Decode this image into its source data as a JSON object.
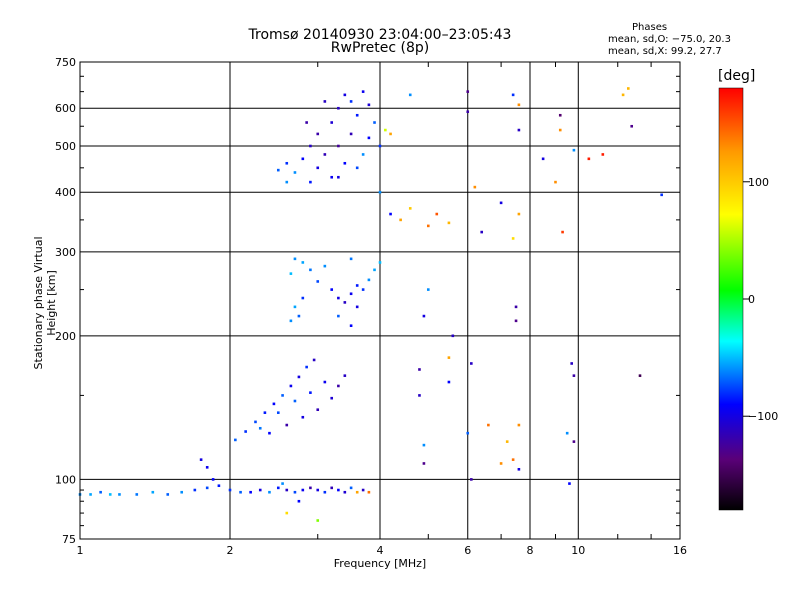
{
  "title_line1": "Tromsø 20140930 23:04:00–23:05:43",
  "title_line2": "RwPretec (8p)",
  "stats": {
    "heading": "Phases",
    "o_mode": "mean, sd,O: −75.0, 20.3",
    "x_mode": "mean, sd,X:  99.2, 27.7"
  },
  "colorbar": {
    "unit": "[deg]",
    "ticks": [
      "100",
      "0",
      "−100"
    ],
    "tick_values": [
      100,
      0,
      -100
    ],
    "range": [
      -180,
      180
    ],
    "colormap": "rainbow (black–purple–blue–cyan–green–yellow–orange–red)"
  },
  "chart_data": {
    "type": "scatter",
    "xlabel": "Frequency [MHz]",
    "ylabel": "Stationary phase Virtual Height [km]",
    "xscale": "log",
    "yscale": "log",
    "xlim": [
      1,
      16
    ],
    "ylim": [
      75,
      750
    ],
    "xticks": [
      1,
      2,
      4,
      6,
      8,
      10,
      16
    ],
    "xtick_labels": [
      "1",
      "2",
      "4",
      "6",
      "8",
      "10",
      "16"
    ],
    "yticks": [
      75,
      100,
      200,
      300,
      400,
      500,
      600,
      750
    ],
    "ytick_labels": [
      "75",
      "100",
      "200",
      "300",
      "400",
      "500",
      "600",
      "750"
    ],
    "grid": true,
    "points": [
      {
        "x": 1.0,
        "y": 93,
        "p": -60
      },
      {
        "x": 1.05,
        "y": 93,
        "p": -55
      },
      {
        "x": 1.1,
        "y": 94,
        "p": -70
      },
      {
        "x": 1.15,
        "y": 93,
        "p": -50
      },
      {
        "x": 1.2,
        "y": 93,
        "p": -60
      },
      {
        "x": 1.3,
        "y": 93,
        "p": -65
      },
      {
        "x": 1.4,
        "y": 94,
        "p": -55
      },
      {
        "x": 1.5,
        "y": 93,
        "p": -70
      },
      {
        "x": 1.6,
        "y": 94,
        "p": -60
      },
      {
        "x": 1.7,
        "y": 95,
        "p": -80
      },
      {
        "x": 1.8,
        "y": 96,
        "p": -75
      },
      {
        "x": 1.85,
        "y": 100,
        "p": -90
      },
      {
        "x": 1.75,
        "y": 110,
        "p": -100
      },
      {
        "x": 1.8,
        "y": 106,
        "p": -95
      },
      {
        "x": 1.9,
        "y": 97,
        "p": -85
      },
      {
        "x": 2.0,
        "y": 95,
        "p": -80
      },
      {
        "x": 2.1,
        "y": 94,
        "p": -70
      },
      {
        "x": 2.2,
        "y": 94,
        "p": -90
      },
      {
        "x": 2.3,
        "y": 95,
        "p": -100
      },
      {
        "x": 2.4,
        "y": 94,
        "p": -60
      },
      {
        "x": 2.5,
        "y": 96,
        "p": -85
      },
      {
        "x": 2.6,
        "y": 95,
        "p": -110
      },
      {
        "x": 2.7,
        "y": 94,
        "p": -75
      },
      {
        "x": 2.8,
        "y": 95,
        "p": -95
      },
      {
        "x": 2.9,
        "y": 96,
        "p": -120
      },
      {
        "x": 3.0,
        "y": 95,
        "p": -100
      },
      {
        "x": 3.1,
        "y": 94,
        "p": -80
      },
      {
        "x": 3.2,
        "y": 96,
        "p": -115
      },
      {
        "x": 3.3,
        "y": 95,
        "p": -90
      },
      {
        "x": 3.4,
        "y": 94,
        "p": -105
      },
      {
        "x": 3.5,
        "y": 96,
        "p": -70
      },
      {
        "x": 3.6,
        "y": 94,
        "p": 120
      },
      {
        "x": 3.7,
        "y": 95,
        "p": -110
      },
      {
        "x": 3.8,
        "y": 94,
        "p": 140
      },
      {
        "x": 2.55,
        "y": 98,
        "p": -60
      },
      {
        "x": 2.75,
        "y": 90,
        "p": -90
      },
      {
        "x": 2.6,
        "y": 85,
        "p": 90
      },
      {
        "x": 3.0,
        "y": 82,
        "p": 40
      },
      {
        "x": 2.05,
        "y": 121,
        "p": -70
      },
      {
        "x": 2.15,
        "y": 126,
        "p": -80
      },
      {
        "x": 2.25,
        "y": 132,
        "p": -75
      },
      {
        "x": 2.35,
        "y": 138,
        "p": -85
      },
      {
        "x": 2.45,
        "y": 144,
        "p": -90
      },
      {
        "x": 2.55,
        "y": 150,
        "p": -70
      },
      {
        "x": 2.65,
        "y": 157,
        "p": -95
      },
      {
        "x": 2.75,
        "y": 164,
        "p": -100
      },
      {
        "x": 2.85,
        "y": 172,
        "p": -80
      },
      {
        "x": 2.95,
        "y": 178,
        "p": -110
      },
      {
        "x": 2.4,
        "y": 125,
        "p": -90
      },
      {
        "x": 2.6,
        "y": 130,
        "p": -120
      },
      {
        "x": 2.8,
        "y": 135,
        "p": -100
      },
      {
        "x": 3.0,
        "y": 140,
        "p": -115
      },
      {
        "x": 3.2,
        "y": 148,
        "p": -105
      },
      {
        "x": 3.3,
        "y": 157,
        "p": -120
      },
      {
        "x": 3.4,
        "y": 165,
        "p": -110
      },
      {
        "x": 3.1,
        "y": 160,
        "p": -95
      },
      {
        "x": 2.9,
        "y": 152,
        "p": -85
      },
      {
        "x": 2.7,
        "y": 146,
        "p": -70
      },
      {
        "x": 2.5,
        "y": 138,
        "p": -75
      },
      {
        "x": 2.3,
        "y": 128,
        "p": -65
      },
      {
        "x": 2.65,
        "y": 215,
        "p": -60
      },
      {
        "x": 2.7,
        "y": 230,
        "p": -55
      },
      {
        "x": 2.75,
        "y": 220,
        "p": -70
      },
      {
        "x": 2.8,
        "y": 240,
        "p": -80
      },
      {
        "x": 2.65,
        "y": 270,
        "p": -50
      },
      {
        "x": 2.7,
        "y": 290,
        "p": -60
      },
      {
        "x": 2.8,
        "y": 285,
        "p": -55
      },
      {
        "x": 2.9,
        "y": 275,
        "p": -65
      },
      {
        "x": 3.0,
        "y": 260,
        "p": -75
      },
      {
        "x": 3.2,
        "y": 250,
        "p": -90
      },
      {
        "x": 3.3,
        "y": 240,
        "p": -100
      },
      {
        "x": 3.4,
        "y": 235,
        "p": -110
      },
      {
        "x": 3.5,
        "y": 245,
        "p": -95
      },
      {
        "x": 3.6,
        "y": 255,
        "p": -85
      },
      {
        "x": 3.7,
        "y": 250,
        "p": -80
      },
      {
        "x": 3.8,
        "y": 262,
        "p": -60
      },
      {
        "x": 3.9,
        "y": 275,
        "p": -55
      },
      {
        "x": 4.0,
        "y": 285,
        "p": -50
      },
      {
        "x": 3.3,
        "y": 220,
        "p": -70
      },
      {
        "x": 3.5,
        "y": 210,
        "p": -90
      },
      {
        "x": 3.6,
        "y": 230,
        "p": -100
      },
      {
        "x": 3.1,
        "y": 280,
        "p": -60
      },
      {
        "x": 3.5,
        "y": 290,
        "p": -65
      },
      {
        "x": 2.5,
        "y": 445,
        "p": -70
      },
      {
        "x": 2.6,
        "y": 460,
        "p": -80
      },
      {
        "x": 2.7,
        "y": 440,
        "p": -60
      },
      {
        "x": 2.8,
        "y": 470,
        "p": -90
      },
      {
        "x": 2.9,
        "y": 500,
        "p": -110
      },
      {
        "x": 3.0,
        "y": 530,
        "p": -120
      },
      {
        "x": 3.0,
        "y": 450,
        "p": -100
      },
      {
        "x": 3.1,
        "y": 480,
        "p": -115
      },
      {
        "x": 3.2,
        "y": 560,
        "p": -105
      },
      {
        "x": 3.2,
        "y": 430,
        "p": -95
      },
      {
        "x": 3.3,
        "y": 600,
        "p": -110
      },
      {
        "x": 3.3,
        "y": 500,
        "p": -125
      },
      {
        "x": 3.4,
        "y": 640,
        "p": -100
      },
      {
        "x": 3.4,
        "y": 460,
        "p": -90
      },
      {
        "x": 3.5,
        "y": 620,
        "p": -80
      },
      {
        "x": 3.5,
        "y": 530,
        "p": -115
      },
      {
        "x": 3.6,
        "y": 580,
        "p": -85
      },
      {
        "x": 3.6,
        "y": 450,
        "p": -75
      },
      {
        "x": 3.7,
        "y": 650,
        "p": -95
      },
      {
        "x": 3.7,
        "y": 480,
        "p": -60
      },
      {
        "x": 3.8,
        "y": 610,
        "p": -105
      },
      {
        "x": 3.8,
        "y": 520,
        "p": -90
      },
      {
        "x": 3.9,
        "y": 560,
        "p": -70
      },
      {
        "x": 4.0,
        "y": 500,
        "p": -80
      },
      {
        "x": 4.1,
        "y": 540,
        "p": 60
      },
      {
        "x": 4.2,
        "y": 530,
        "p": 120
      },
      {
        "x": 2.6,
        "y": 420,
        "p": -60
      },
      {
        "x": 2.9,
        "y": 420,
        "p": -85
      },
      {
        "x": 3.3,
        "y": 430,
        "p": -100
      },
      {
        "x": 2.85,
        "y": 560,
        "p": -120
      },
      {
        "x": 3.1,
        "y": 620,
        "p": -110
      },
      {
        "x": 4.0,
        "y": 400,
        "p": -60
      },
      {
        "x": 4.2,
        "y": 360,
        "p": -90
      },
      {
        "x": 4.4,
        "y": 350,
        "p": 120
      },
      {
        "x": 4.6,
        "y": 370,
        "p": 100
      },
      {
        "x": 5.0,
        "y": 340,
        "p": 140
      },
      {
        "x": 5.2,
        "y": 360,
        "p": 150
      },
      {
        "x": 5.5,
        "y": 345,
        "p": 110
      },
      {
        "x": 6.2,
        "y": 410,
        "p": 130
      },
      {
        "x": 6.4,
        "y": 330,
        "p": -110
      },
      {
        "x": 7.0,
        "y": 380,
        "p": -100
      },
      {
        "x": 7.4,
        "y": 320,
        "p": 90
      },
      {
        "x": 7.6,
        "y": 360,
        "p": 120
      },
      {
        "x": 5.0,
        "y": 250,
        "p": -60
      },
      {
        "x": 4.9,
        "y": 220,
        "p": -100
      },
      {
        "x": 5.6,
        "y": 200,
        "p": -110
      },
      {
        "x": 7.5,
        "y": 230,
        "p": -120
      },
      {
        "x": 7.5,
        "y": 215,
        "p": -130
      },
      {
        "x": 4.8,
        "y": 170,
        "p": -120
      },
      {
        "x": 4.8,
        "y": 150,
        "p": -110
      },
      {
        "x": 5.5,
        "y": 180,
        "p": 120
      },
      {
        "x": 5.5,
        "y": 160,
        "p": -90
      },
      {
        "x": 6.1,
        "y": 175,
        "p": -110
      },
      {
        "x": 6.6,
        "y": 130,
        "p": 140
      },
      {
        "x": 6.0,
        "y": 125,
        "p": -70
      },
      {
        "x": 7.2,
        "y": 120,
        "p": 110
      },
      {
        "x": 7.6,
        "y": 130,
        "p": 130
      },
      {
        "x": 7.4,
        "y": 110,
        "p": 140
      },
      {
        "x": 7.6,
        "y": 105,
        "p": -100
      },
      {
        "x": 4.9,
        "y": 118,
        "p": -60
      },
      {
        "x": 4.9,
        "y": 108,
        "p": -130
      },
      {
        "x": 6.1,
        "y": 100,
        "p": -120
      },
      {
        "x": 7.0,
        "y": 108,
        "p": 130
      },
      {
        "x": 9.5,
        "y": 125,
        "p": -60
      },
      {
        "x": 9.8,
        "y": 120,
        "p": -130
      },
      {
        "x": 9.8,
        "y": 165,
        "p": -120
      },
      {
        "x": 9.7,
        "y": 175,
        "p": -110
      },
      {
        "x": 13.3,
        "y": 165,
        "p": -150
      },
      {
        "x": 9.6,
        "y": 98,
        "p": -90
      },
      {
        "x": 4.6,
        "y": 640,
        "p": -60
      },
      {
        "x": 6.0,
        "y": 650,
        "p": -130
      },
      {
        "x": 6.0,
        "y": 590,
        "p": -120
      },
      {
        "x": 7.4,
        "y": 640,
        "p": -80
      },
      {
        "x": 7.6,
        "y": 610,
        "p": 130
      },
      {
        "x": 7.6,
        "y": 540,
        "p": -110
      },
      {
        "x": 8.5,
        "y": 470,
        "p": -100
      },
      {
        "x": 9.2,
        "y": 540,
        "p": 130
      },
      {
        "x": 9.2,
        "y": 580,
        "p": -140
      },
      {
        "x": 9.8,
        "y": 490,
        "p": -60
      },
      {
        "x": 10.5,
        "y": 470,
        "p": 170
      },
      {
        "x": 11.2,
        "y": 480,
        "p": 170
      },
      {
        "x": 12.3,
        "y": 640,
        "p": 110
      },
      {
        "x": 12.6,
        "y": 660,
        "p": 110
      },
      {
        "x": 12.8,
        "y": 550,
        "p": -130
      },
      {
        "x": 14.7,
        "y": 395,
        "p": -80
      },
      {
        "x": 9.3,
        "y": 330,
        "p": 160
      },
      {
        "x": 9.0,
        "y": 420,
        "p": 130
      }
    ]
  }
}
